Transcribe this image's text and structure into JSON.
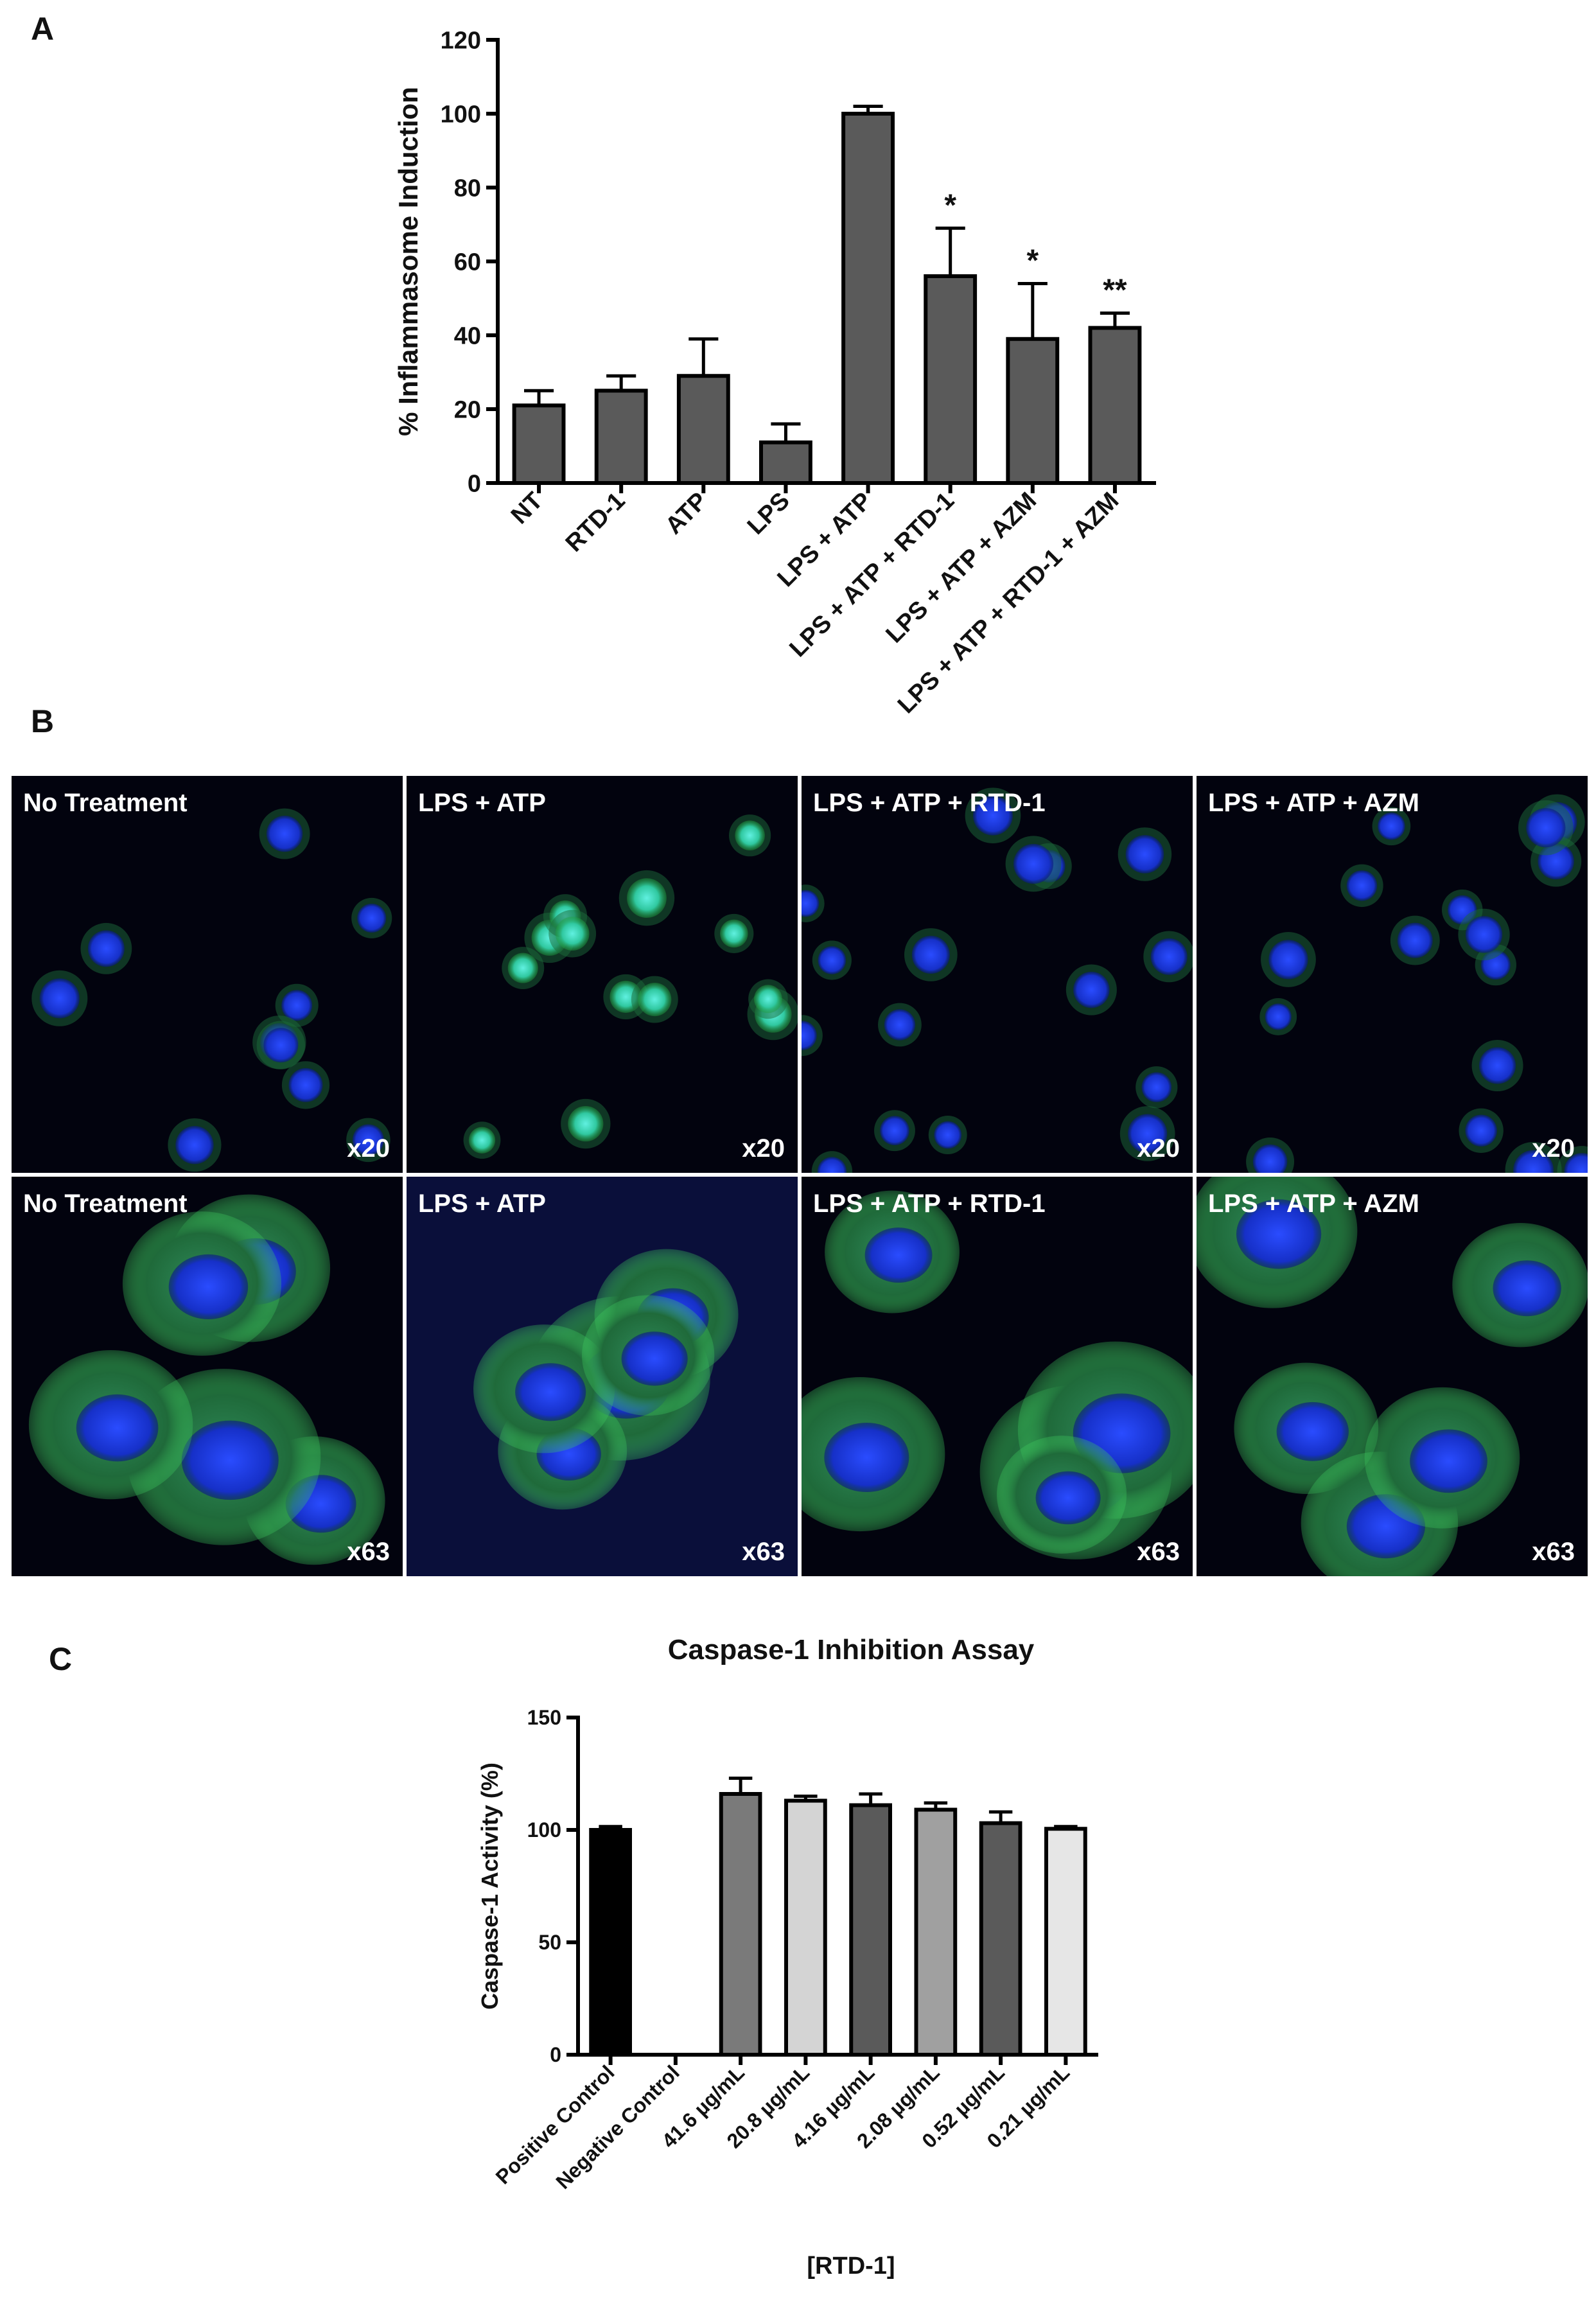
{
  "chart_data": [
    {
      "type": "bar",
      "label": "A",
      "ylabel": "% Inflammasome Induction",
      "categories": [
        "NT",
        "RTD-1",
        "ATP",
        "LPS",
        "LPS + ATP",
        "LPS + ATP + RTD-1",
        "LPS + ATP + AZM",
        "LPS + ATP + RTD-1 + AZM"
      ],
      "values": [
        21,
        25,
        29,
        11,
        100,
        56,
        39,
        42
      ],
      "errors": [
        4,
        4,
        10,
        5,
        2,
        13,
        15,
        4
      ],
      "annotations": [
        null,
        null,
        null,
        null,
        null,
        "*",
        "*",
        "**"
      ],
      "color": "#5a5a5a",
      "ylim": [
        0,
        120
      ],
      "yticks": [
        0,
        20,
        40,
        60,
        80,
        100,
        120
      ]
    },
    {
      "type": "bar",
      "label": "C",
      "title": "Caspase-1 Inhibition  Assay",
      "ylabel": "Caspase-1 Activity (%)",
      "xlabel": "[RTD-1]",
      "categories": [
        "Positive Control",
        "Negative Control",
        "41.6 µg/mL",
        "20.8 µg/mL",
        "4.16 µg/mL",
        "2.08 µg/mL",
        "0.52 µg/mL",
        "0.21 µg/mL"
      ],
      "values": [
        100,
        0,
        116,
        113,
        111,
        109,
        103,
        100.5
      ],
      "errors": [
        1.5,
        null,
        7,
        2,
        5,
        3,
        5,
        1
      ],
      "colors": [
        "#000000",
        null,
        "#7a7a7a",
        "#d4d4d4",
        "#5a5a5a",
        "#a0a0a0",
        "#5a5a5a",
        "#e6e6e6"
      ],
      "ylim": [
        0,
        150
      ],
      "yticks": [
        0,
        50,
        100,
        150
      ]
    }
  ],
  "micrographs": {
    "label": "B",
    "rows": [
      {
        "magnification": "x20",
        "labels": [
          "No Treatment",
          "LPS + ATP",
          "LPS + ATP + RTD-1",
          "LPS + ATP + AZM"
        ]
      },
      {
        "magnification": "x63",
        "labels": [
          "No Treatment",
          "LPS + ATP",
          "LPS + ATP + RTD-1",
          "LPS + ATP + AZM"
        ]
      }
    ]
  }
}
